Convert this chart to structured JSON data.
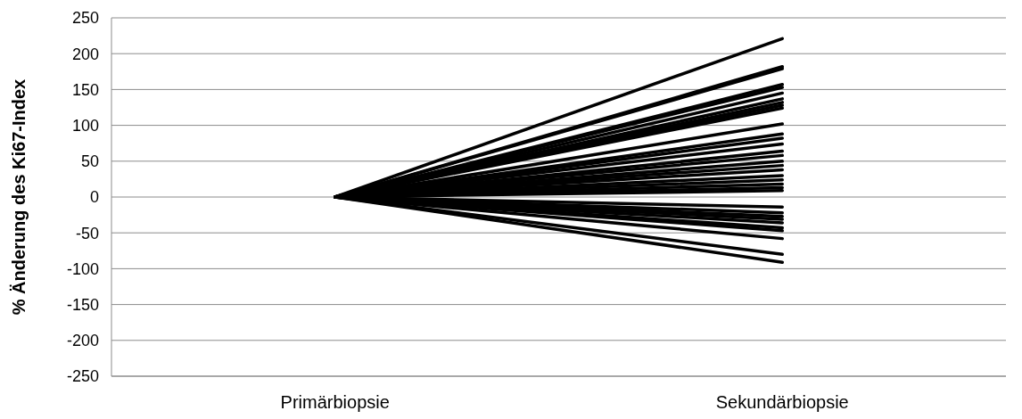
{
  "chart_data": {
    "type": "line",
    "ylabel": "% Änderung des Ki67-Index",
    "categories": [
      "Primärbiopsie",
      "Sekundärbiopsie"
    ],
    "ylim": [
      -250,
      250
    ],
    "yticks": [
      -250,
      -200,
      -150,
      -100,
      -50,
      0,
      50,
      100,
      150,
      200,
      250
    ],
    "grid": "y",
    "marker": "none",
    "line_style": "solid",
    "series": [
      {
        "color": "#000000",
        "values": [
          0,
          221
        ]
      },
      {
        "color": "#000000",
        "values": [
          0,
          182
        ]
      },
      {
        "color": "#000000",
        "values": [
          0,
          179
        ]
      },
      {
        "color": "#000000",
        "values": [
          0,
          157
        ]
      },
      {
        "color": "#000000",
        "values": [
          0,
          153
        ]
      },
      {
        "color": "#000000",
        "values": [
          0,
          145
        ]
      },
      {
        "color": "#000000",
        "values": [
          0,
          137
        ]
      },
      {
        "color": "#000000",
        "values": [
          0,
          132
        ]
      },
      {
        "color": "#000000",
        "values": [
          0,
          128
        ]
      },
      {
        "color": "#000000",
        "values": [
          0,
          124
        ]
      },
      {
        "color": "#000000",
        "values": [
          0,
          102
        ]
      },
      {
        "color": "#000000",
        "values": [
          0,
          88
        ]
      },
      {
        "color": "#000000",
        "values": [
          0,
          82
        ]
      },
      {
        "color": "#000000",
        "values": [
          0,
          74
        ]
      },
      {
        "color": "#000000",
        "values": [
          0,
          64
        ]
      },
      {
        "color": "#000000",
        "values": [
          0,
          58
        ]
      },
      {
        "color": "#000000",
        "values": [
          0,
          50
        ]
      },
      {
        "color": "#000000",
        "values": [
          0,
          44
        ]
      },
      {
        "color": "#000000",
        "values": [
          0,
          38
        ]
      },
      {
        "color": "#000000",
        "values": [
          0,
          30
        ]
      },
      {
        "color": "#000000",
        "values": [
          0,
          24
        ]
      },
      {
        "color": "#000000",
        "values": [
          0,
          18
        ]
      },
      {
        "color": "#000000",
        "values": [
          0,
          13
        ]
      },
      {
        "color": "#000000",
        "values": [
          0,
          9
        ]
      },
      {
        "color": "#000000",
        "values": [
          0,
          -14
        ]
      },
      {
        "color": "#000000",
        "values": [
          0,
          -22
        ]
      },
      {
        "color": "#000000",
        "values": [
          0,
          -27
        ]
      },
      {
        "color": "#000000",
        "values": [
          0,
          -31
        ]
      },
      {
        "color": "#000000",
        "values": [
          0,
          -36
        ]
      },
      {
        "color": "#000000",
        "values": [
          0,
          -43
        ]
      },
      {
        "color": "#000000",
        "values": [
          0,
          -47
        ]
      },
      {
        "color": "#000000",
        "values": [
          0,
          -58
        ]
      },
      {
        "color": "#000000",
        "values": [
          0,
          -80
        ]
      },
      {
        "color": "#000000",
        "values": [
          0,
          -91
        ]
      }
    ]
  }
}
